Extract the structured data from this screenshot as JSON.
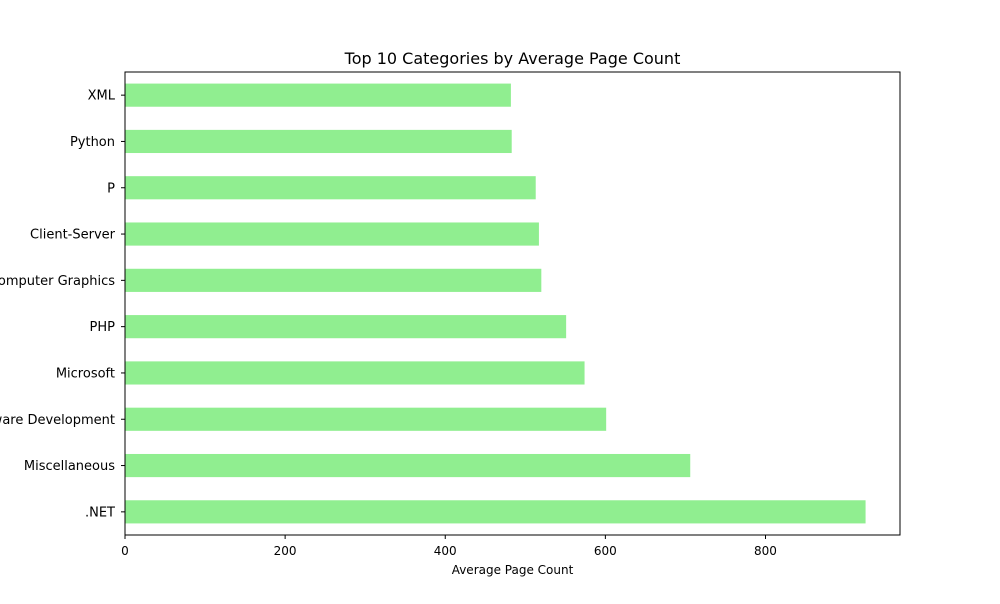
{
  "chart_data": {
    "type": "bar",
    "orientation": "horizontal",
    "title": "Top 10 Categories by Average Page Count",
    "xlabel": "Average Page Count",
    "ylabel": "",
    "categories": [
      ".NET",
      "Miscellaneous",
      "Software Development",
      "Microsoft",
      "PHP",
      "Computer Graphics",
      "Client-Server",
      "P",
      "Python",
      "XML"
    ],
    "values": [
      925,
      706,
      601,
      574,
      551,
      520,
      517,
      513,
      483,
      482
    ],
    "xlim": [
      0,
      968
    ],
    "xticks": [
      0,
      200,
      400,
      600,
      800
    ],
    "bar_color": "#90ee90",
    "grid": false,
    "legend": "none"
  }
}
